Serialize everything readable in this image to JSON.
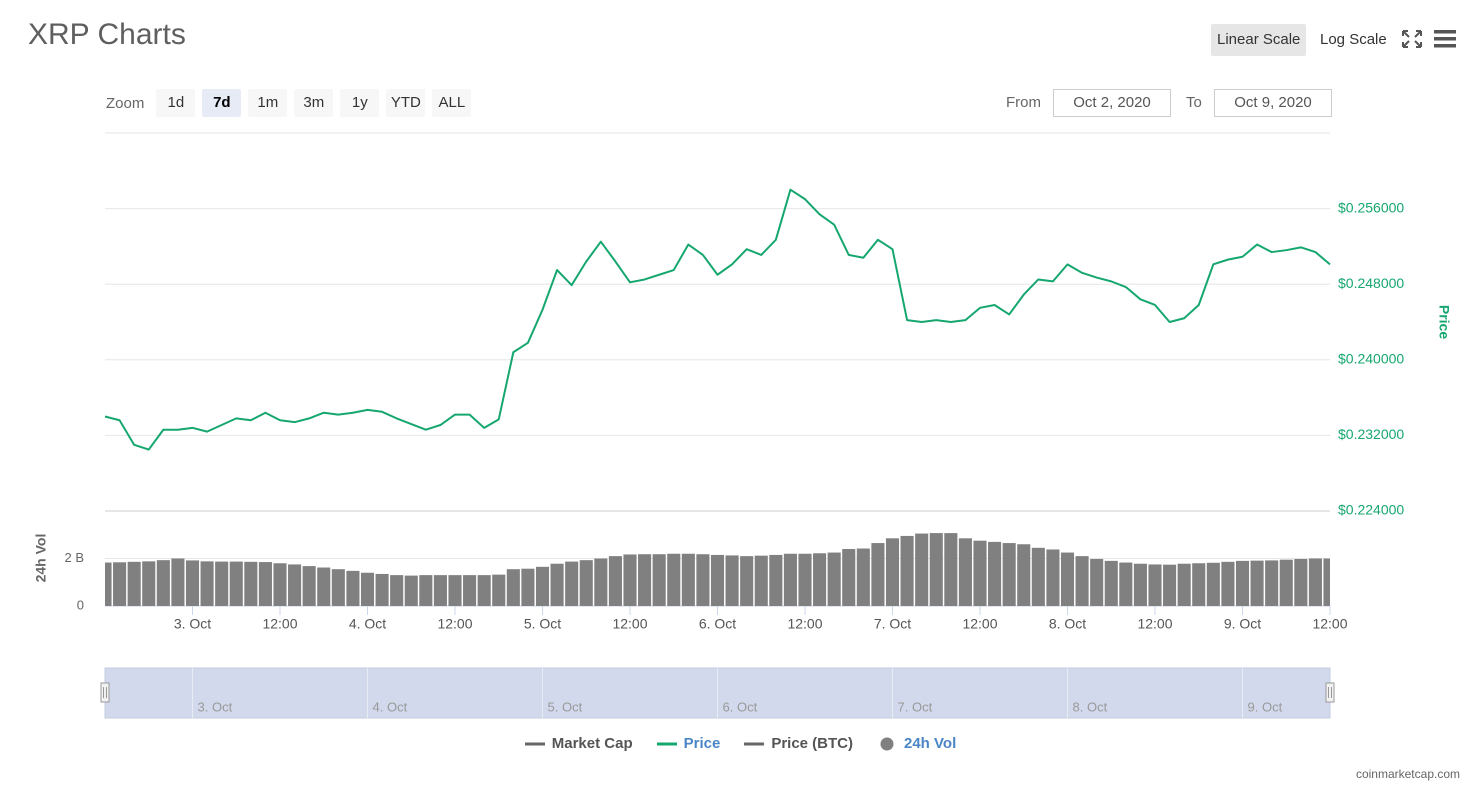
{
  "header": {
    "title": "XRP Charts",
    "scale_buttons": [
      "Linear Scale",
      "Log Scale"
    ]
  },
  "controls": {
    "zoom_label": "Zoom",
    "zoom_buttons": [
      "1d",
      "7d",
      "1m",
      "3m",
      "1y",
      "YTD",
      "ALL"
    ],
    "zoom_selected": 1,
    "from_label": "From",
    "from": "Oct 2, 2020",
    "to_label": "To",
    "to": "Oct 9, 2020"
  },
  "chart_data": {
    "type": "line",
    "log_scale": false,
    "grid": true,
    "legend": "bottom",
    "x": [
      1601640000000,
      1601647200000,
      1601654400000,
      1601661600000,
      1601668800000,
      1601676000000,
      1601683200000,
      1601690400000,
      1601697600000,
      1601704800000,
      1601712000000,
      1601719200000,
      1601726400000,
      1601733600000,
      1601740800000,
      1601748000000,
      1601755200000,
      1601762400000,
      1601769600000,
      1601776800000,
      1601784000000,
      1601791200000,
      1601798400000,
      1601805600000,
      1601812800000,
      1601820000000,
      1601827200000,
      1601834400000,
      1601841600000,
      1601848800000,
      1601856000000,
      1601863200000,
      1601870400000,
      1601877600000,
      1601884800000,
      1601892000000,
      1601899200000,
      1601906400000,
      1601913600000,
      1601920800000,
      1601928000000,
      1601935200000,
      1601942400000,
      1601949600000,
      1601956800000,
      1601964000000,
      1601971200000,
      1601978400000,
      1601985600000,
      1601992800000,
      1602000000000,
      1602007200000,
      1602014400000,
      1602021600000,
      1602028800000,
      1602036000000,
      1602043200000,
      1602050400000,
      1602057600000,
      1602064800000,
      1602072000000,
      1602079200000,
      1602086400000,
      1602093600000,
      1602100800000,
      1602108000000,
      1602115200000,
      1602122400000,
      1602129600000,
      1602136800000,
      1602144000000,
      1602151200000,
      1602158400000,
      1602165600000,
      1602172800000,
      1602180000000,
      1602187200000,
      1602194400000,
      1602201600000,
      1602208800000,
      1602216000000,
      1602223200000,
      1602230400000,
      1602237600000,
      1602244800000
    ],
    "xlim": [
      1601640000000,
      1602244800000
    ],
    "xticks": [
      {
        "value": 1601683200000,
        "label": "3. Oct"
      },
      {
        "value": 1601726400000,
        "label": "12:00"
      },
      {
        "value": 1601769600000,
        "label": "4. Oct"
      },
      {
        "value": 1601812800000,
        "label": "12:00"
      },
      {
        "value": 1601856000000,
        "label": "5. Oct"
      },
      {
        "value": 1601899200000,
        "label": "12:00"
      },
      {
        "value": 1601942400000,
        "label": "6. Oct"
      },
      {
        "value": 1601985600000,
        "label": "12:00"
      },
      {
        "value": 1602028800000,
        "label": "7. Oct"
      },
      {
        "value": 1602072000000,
        "label": "12:00"
      },
      {
        "value": 1602115200000,
        "label": "8. Oct"
      },
      {
        "value": 1602158400000,
        "label": "12:00"
      },
      {
        "value": 1602201600000,
        "label": "9. Oct"
      },
      {
        "value": 1602244800000,
        "label": "12:00"
      }
    ],
    "ylim": [
      0.224,
      0.264
    ],
    "yticks": [
      {
        "value": 0.224,
        "label": "$0.224000"
      },
      {
        "value": 0.232,
        "label": "$0.232000"
      },
      {
        "value": 0.24,
        "label": "$0.240000"
      },
      {
        "value": 0.248,
        "label": "$0.248000"
      },
      {
        "value": 0.256,
        "label": "$0.256000"
      }
    ],
    "ylabel": "Price",
    "vol_ylim": [
      0,
      4000000000
    ],
    "vol_yticks": [
      0,
      {
        "value": 2000000000,
        "label": "2 B"
      }
    ],
    "vol_ylabel": "24h Vol",
    "navigator_xticks": [
      {
        "value": 1601683200000,
        "label": "3. Oct"
      },
      {
        "value": 1601769600000,
        "label": "4. Oct"
      },
      {
        "value": 1601856000000,
        "label": "5. Oct"
      },
      {
        "value": 1601942400000,
        "label": "6. Oct"
      },
      {
        "value": 1602028800000,
        "label": "7. Oct"
      },
      {
        "value": 1602115200000,
        "label": "8. Oct"
      },
      {
        "value": 1602201600000,
        "label": "9. Oct"
      }
    ],
    "series": [
      {
        "name": "Market Cap",
        "type": "line",
        "color": "#666666",
        "visible": false
      },
      {
        "name": "Price",
        "type": "line",
        "color": "#16a76f",
        "visible": true,
        "values": [
          0.234,
          0.2336,
          0.231,
          0.2305,
          0.2326,
          0.2326,
          0.2328,
          0.2324,
          0.2331,
          0.2338,
          0.2336,
          0.2344,
          0.2336,
          0.2334,
          0.2338,
          0.2344,
          0.2342,
          0.2344,
          0.2347,
          0.2345,
          0.2338,
          0.2332,
          0.2326,
          0.2331,
          0.2342,
          0.2342,
          0.2328,
          0.2337,
          0.2408,
          0.2418,
          0.2453,
          0.2495,
          0.2479,
          0.2504,
          0.2525,
          0.2504,
          0.2482,
          0.2485,
          0.249,
          0.2495,
          0.2522,
          0.2511,
          0.249,
          0.2501,
          0.2517,
          0.2511,
          0.2527,
          0.258,
          0.257,
          0.2554,
          0.2543,
          0.2511,
          0.2508,
          0.2527,
          0.2517,
          0.2442,
          0.244,
          0.2442,
          0.244,
          0.2442,
          0.2455,
          0.2458,
          0.2448,
          0.2469,
          0.2485,
          0.2483,
          0.2501,
          0.2492,
          0.2487,
          0.2483,
          0.2477,
          0.2464,
          0.2458,
          0.244,
          0.2444,
          0.2458,
          0.2501,
          0.2506,
          0.2509,
          0.2522,
          0.2514,
          0.2516,
          0.2519,
          0.2514,
          0.2501
        ]
      },
      {
        "name": "Price (BTC)",
        "type": "line",
        "color": "#666666",
        "visible": false
      },
      {
        "name": "24h Vol",
        "type": "column",
        "color": "#808080",
        "visible": true,
        "axis": "vol",
        "values": [
          1830000000,
          1840000000,
          1860000000,
          1880000000,
          1930000000,
          2000000000,
          1920000000,
          1880000000,
          1870000000,
          1870000000,
          1860000000,
          1850000000,
          1800000000,
          1750000000,
          1680000000,
          1620000000,
          1550000000,
          1480000000,
          1400000000,
          1350000000,
          1300000000,
          1280000000,
          1300000000,
          1300000000,
          1300000000,
          1300000000,
          1300000000,
          1320000000,
          1550000000,
          1570000000,
          1650000000,
          1780000000,
          1870000000,
          1930000000,
          2000000000,
          2100000000,
          2170000000,
          2180000000,
          2180000000,
          2200000000,
          2200000000,
          2180000000,
          2150000000,
          2130000000,
          2100000000,
          2120000000,
          2150000000,
          2200000000,
          2200000000,
          2220000000,
          2250000000,
          2400000000,
          2420000000,
          2650000000,
          2850000000,
          2950000000,
          3050000000,
          3070000000,
          3070000000,
          2850000000,
          2750000000,
          2700000000,
          2650000000,
          2600000000,
          2450000000,
          2380000000,
          2250000000,
          2100000000,
          1980000000,
          1900000000,
          1830000000,
          1780000000,
          1750000000,
          1740000000,
          1780000000,
          1800000000,
          1820000000,
          1860000000,
          1900000000,
          1910000000,
          1920000000,
          1950000000,
          1980000000,
          2000000000,
          2000000000
        ]
      }
    ]
  },
  "credit": "coinmarketcap.com"
}
